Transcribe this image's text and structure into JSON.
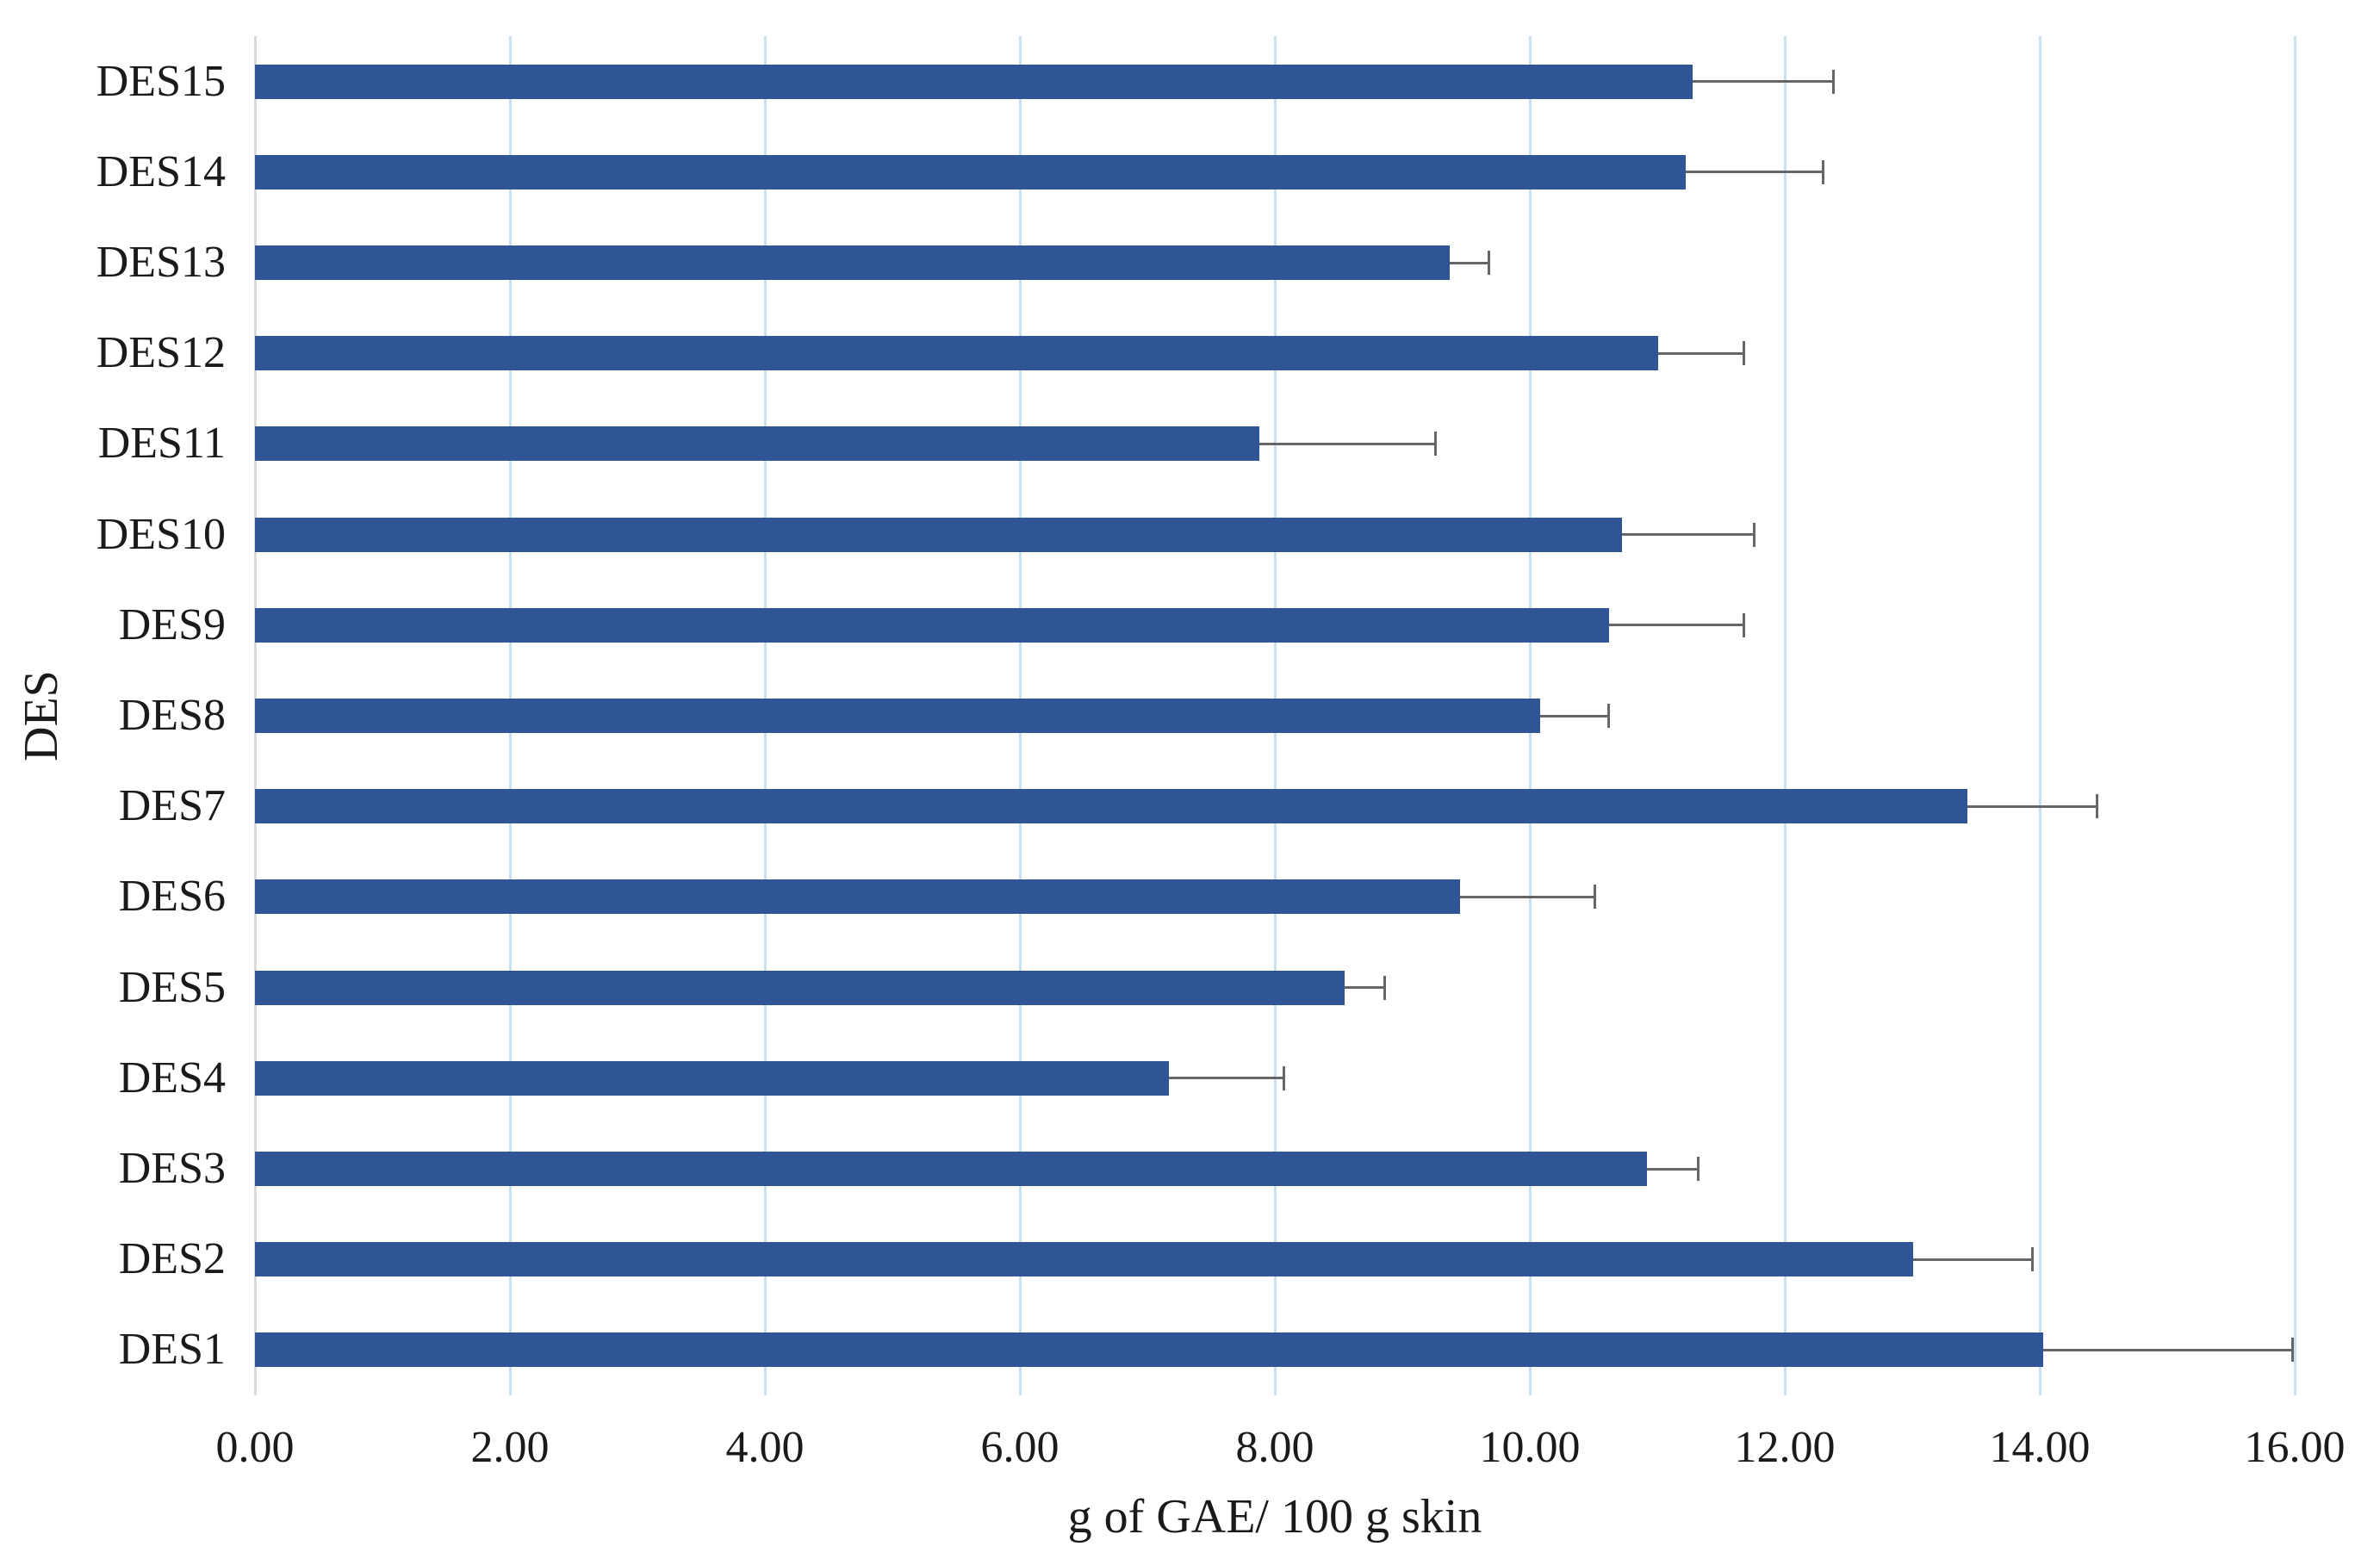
{
  "chart_data": {
    "type": "bar",
    "orientation": "horizontal",
    "title": "",
    "xlabel": "g of GAE/ 100 g skin",
    "ylabel": "DES",
    "xlim": [
      0,
      16
    ],
    "x_ticks": [
      "0.00",
      "2.00",
      "4.00",
      "6.00",
      "8.00",
      "10.00",
      "12.00",
      "14.00",
      "16.00"
    ],
    "x_tick_values": [
      0,
      2,
      4,
      6,
      8,
      10,
      12,
      14,
      16
    ],
    "grid": "vertical gridlines every 2 units",
    "legend": "none",
    "categories_top_to_bottom": [
      "DES15",
      "DES14",
      "DES13",
      "DES12",
      "DES11",
      "DES10",
      "DES9",
      "DES8",
      "DES7",
      "DES6",
      "DES5",
      "DES4",
      "DES3",
      "DES2",
      "DES1"
    ],
    "series": [
      {
        "name": "g of GAE per 100 g skin",
        "values": [
          11.28,
          11.22,
          9.37,
          11.01,
          7.88,
          10.72,
          10.62,
          10.08,
          13.43,
          9.45,
          8.55,
          7.17,
          10.92,
          13.01,
          14.03
        ],
        "errors_plus": [
          1.1,
          1.08,
          0.31,
          0.67,
          1.38,
          1.04,
          1.06,
          0.54,
          1.02,
          1.06,
          0.31,
          0.9,
          0.4,
          0.93,
          1.95
        ]
      }
    ],
    "colors": {
      "bar": "#2F5596",
      "error_bar": "#666666",
      "gridline": "#C7E1F3",
      "axis_line": "#D9D9D9",
      "text": "#1a1a1a",
      "background": "#FFFFFF"
    }
  }
}
